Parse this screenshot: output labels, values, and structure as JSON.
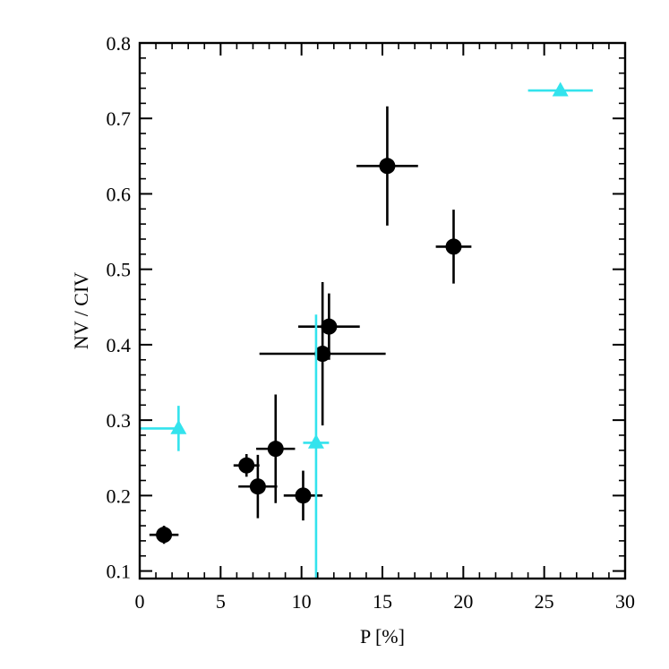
{
  "chart_data": {
    "type": "scatter",
    "xlabel": "P [%]",
    "ylabel": "NV / CIV",
    "xlim": [
      0,
      30
    ],
    "ylim": [
      0.09,
      0.8
    ],
    "xticks": [
      0,
      5,
      10,
      15,
      20,
      25,
      30
    ],
    "xtick_labels": [
      "0",
      "5",
      "10",
      "15",
      "20",
      "25",
      "30"
    ],
    "yticks": [
      0.1,
      0.2,
      0.3,
      0.4,
      0.5,
      0.6,
      0.7,
      0.8
    ],
    "ytick_labels": [
      "0.1",
      "0.2",
      "0.3",
      "0.4",
      "0.5",
      "0.6",
      "0.7",
      "0.8"
    ],
    "grid": false,
    "series": [
      {
        "marker": "circle",
        "color": "#000000",
        "points": [
          {
            "x": 1.5,
            "y": 0.148,
            "xerr": 0.9,
            "yerr": 0.012
          },
          {
            "x": 6.6,
            "y": 0.24,
            "xerr": 0.8,
            "yerr": 0.015
          },
          {
            "x": 7.3,
            "y": 0.212,
            "xerr": 1.2,
            "yerr": 0.042
          },
          {
            "x": 8.4,
            "y": 0.262,
            "xerr": 1.2,
            "yerr": 0.072
          },
          {
            "x": 10.1,
            "y": 0.2,
            "xerr": 1.2,
            "yerr": 0.033
          },
          {
            "x": 11.3,
            "y": 0.388,
            "xerr": 3.9,
            "yerr": 0.095
          },
          {
            "x": 11.7,
            "y": 0.424,
            "xerr": 1.9,
            "yerr": 0.044
          },
          {
            "x": 15.3,
            "y": 0.637,
            "xerr": 1.9,
            "yerr": 0.079
          },
          {
            "x": 19.4,
            "y": 0.53,
            "xerr": 1.1,
            "yerr": 0.049
          }
        ]
      },
      {
        "marker": "triangle",
        "color": "#33e3ed",
        "points": [
          {
            "x": 2.4,
            "y": 0.289,
            "xerr_lo": 2.4,
            "xerr_hi": 0,
            "yerr": 0.03
          },
          {
            "x": 10.9,
            "y": 0.27,
            "xerr": 0.8,
            "yerr_lo": 0.18,
            "yerr_hi": 0.17
          },
          {
            "x": 26.0,
            "y": 0.737,
            "xerr": 2.0,
            "yerr": 0
          }
        ]
      }
    ]
  }
}
